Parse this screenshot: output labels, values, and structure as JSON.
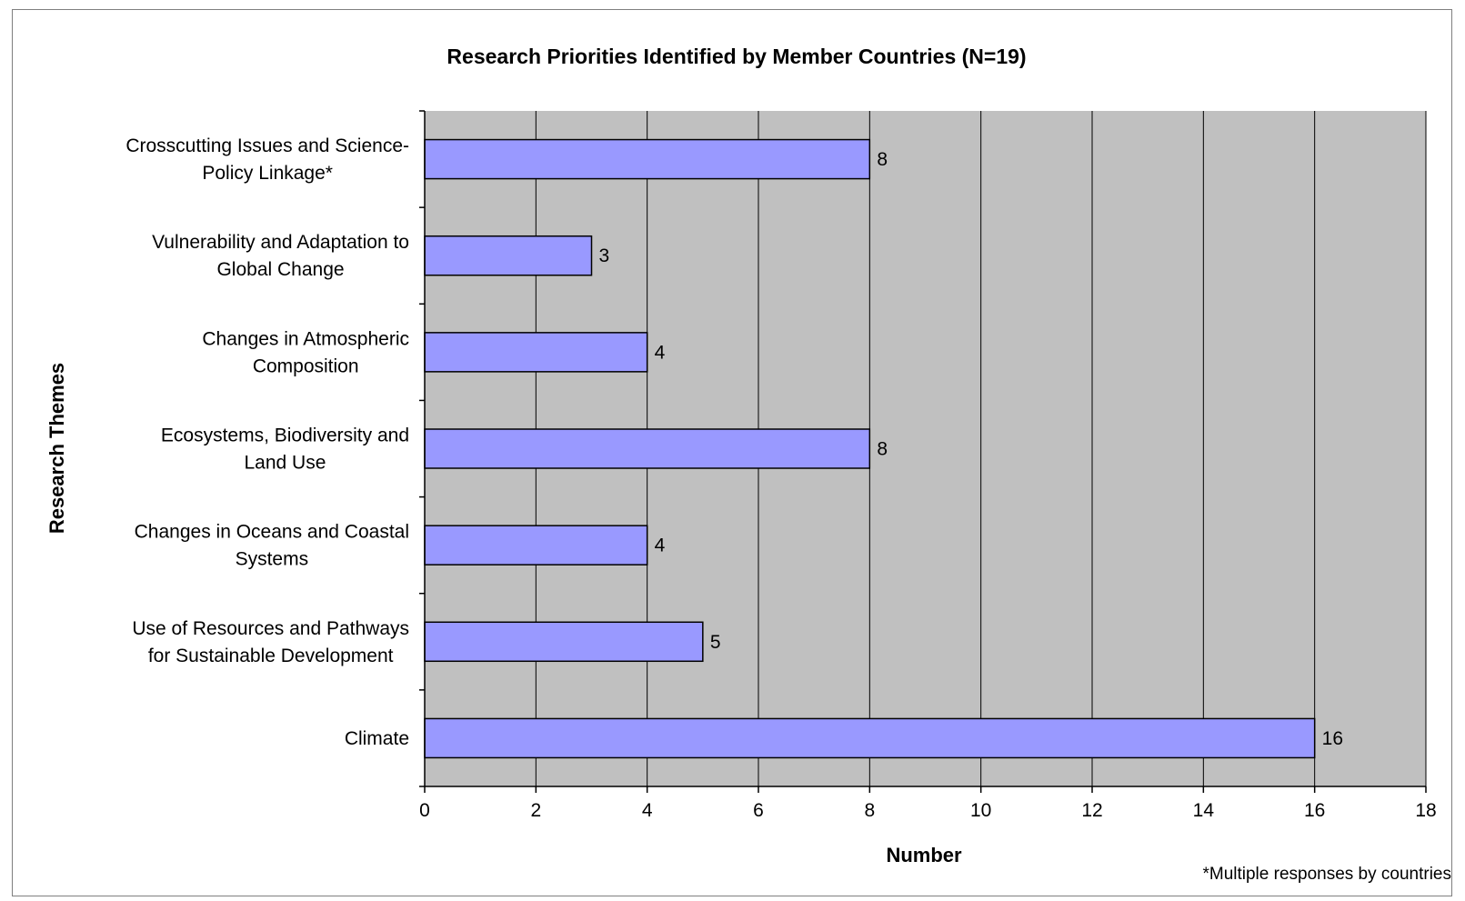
{
  "chart_data": {
    "type": "bar",
    "orientation": "horizontal",
    "title": "Research Priorities Identified by Member Countries (N=19)",
    "xlabel": "Number",
    "ylabel": "Research Themes",
    "xlim": [
      0,
      18
    ],
    "x_ticks": [
      "0",
      "2",
      "4",
      "6",
      "8",
      "10",
      "12",
      "14",
      "16",
      "18"
    ],
    "categories": [
      [
        "Crosscutting Issues and Science-",
        "Policy Linkage*"
      ],
      [
        "Vulnerability and Adaptation to",
        "Global Change"
      ],
      [
        "Changes in Atmospheric",
        "Composition"
      ],
      [
        "Ecosystems, Biodiversity and",
        "Land Use"
      ],
      [
        "Changes in Oceans and Coastal",
        "Systems"
      ],
      [
        "Use of Resources and Pathways",
        "for Sustainable Development"
      ],
      [
        "Climate"
      ]
    ],
    "values": [
      8,
      3,
      4,
      8,
      4,
      5,
      16
    ],
    "data_labels": [
      "8",
      "3",
      "4",
      "8",
      "4",
      "5",
      "16"
    ],
    "grid": "vertical",
    "legend": "none",
    "footnote": "*Multiple responses by countries"
  },
  "colors": {
    "bar_fill": "#9999ff",
    "bar_stroke": "#000000",
    "plot_background": "#c0c0c0",
    "gridline": "#000000"
  }
}
